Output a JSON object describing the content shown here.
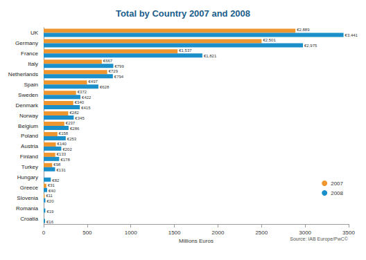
{
  "chart_data": {
    "type": "bar",
    "title": "Total by Country 2007 and 2008",
    "xlabel": "Millions Euros",
    "annotation": "Source: IAB Europe/PwC©",
    "orientation": "horizontal",
    "categories": [
      "UK",
      "Germany",
      "France",
      "Italy",
      "Netherlands",
      "Spain",
      "Sweden",
      "Denmark",
      "Norway",
      "Belgium",
      "Poland",
      "Austria",
      "Finland",
      "Turkey",
      "Hungary",
      "Greece",
      "Slovenia",
      "Romania",
      "Croatia"
    ],
    "series": [
      {
        "name": "2007",
        "color": "#f0962e",
        "values": [
          2889,
          2501,
          1537,
          667,
          729,
          497,
          372,
          340,
          282,
          237,
          158,
          140,
          133,
          98,
          null,
          31,
          11,
          null,
          null
        ],
        "value_labels": [
          "€2,889",
          "€2,501",
          "€1,537",
          "€667",
          "€729",
          "€497",
          "€372",
          "€340",
          "€282",
          "€237",
          "€158",
          "€140",
          "€133",
          "€98",
          null,
          "€31",
          "€11",
          null,
          null
        ]
      },
      {
        "name": "2008",
        "color": "#1a8fc9",
        "values": [
          3441,
          2975,
          1821,
          799,
          794,
          628,
          422,
          415,
          345,
          286,
          253,
          202,
          178,
          131,
          82,
          40,
          20,
          19,
          16
        ],
        "value_labels": [
          "€3,441",
          "€2,975",
          "€1,821",
          "€799",
          "€794",
          "€628",
          "€422",
          "€415",
          "€345",
          "€286",
          "€253",
          "€202",
          "€178",
          "€131",
          "€82",
          "€40",
          "€20",
          "€19",
          "€16"
        ]
      }
    ],
    "xlim": [
      0,
      3500
    ],
    "xticks": [
      0,
      500,
      1000,
      1500,
      2000,
      2500,
      3000,
      3500
    ],
    "data_labels": true,
    "legend": "right",
    "grid": false
  }
}
